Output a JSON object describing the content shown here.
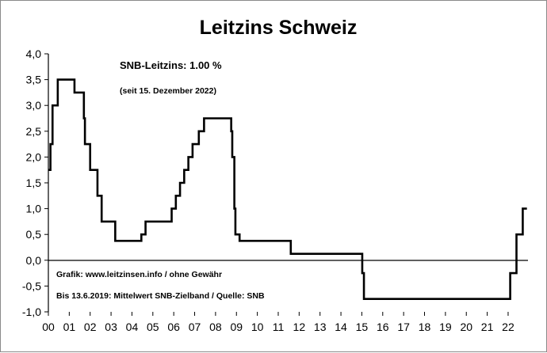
{
  "chart_data": {
    "type": "line",
    "title": "Leitzins Schweiz",
    "xlabel": "",
    "ylabel": "",
    "xlim": [
      2000.0,
      2022.95
    ],
    "ylim": [
      -1.0,
      4.0
    ],
    "y_ticks": [
      "4,0",
      "3,5",
      "3,0",
      "2,5",
      "2,0",
      "1,5",
      "1,0",
      "0,5",
      "0,0",
      "-0,5",
      "-1,0"
    ],
    "x_ticks": [
      "00",
      "01",
      "02",
      "03",
      "04",
      "05",
      "06",
      "07",
      "08",
      "09",
      "10",
      "11",
      "12",
      "13",
      "14",
      "15",
      "16",
      "17",
      "18",
      "19",
      "20",
      "21",
      "22"
    ],
    "grid": false,
    "legend": "none",
    "line_color": "#000000",
    "step": true,
    "series": [
      {
        "x": [
          2000.0,
          2000.1,
          2000.2,
          2000.45,
          2001.25,
          2001.7,
          2001.75,
          2002.0,
          2002.35,
          2002.55,
          2003.2,
          2004.45,
          2004.65,
          2005.9,
          2006.1,
          2006.3,
          2006.5,
          2006.7,
          2006.9,
          2007.2,
          2007.45,
          2007.65,
          2008.75,
          2008.8,
          2008.9,
          2008.95,
          2009.15,
          2011.6,
          2015.02,
          2015.1,
          2022.1,
          2022.4,
          2022.7,
          2022.9
        ],
        "y": [
          1.75,
          2.25,
          3.0,
          3.5,
          3.25,
          2.75,
          2.25,
          1.75,
          1.25,
          0.75,
          0.375,
          0.5,
          0.75,
          1.0,
          1.25,
          1.5,
          1.75,
          2.0,
          2.25,
          2.5,
          2.75,
          2.75,
          2.5,
          2.0,
          1.0,
          0.5,
          0.375,
          0.125,
          -0.25,
          -0.75,
          -0.25,
          0.5,
          1.0,
          1.0
        ]
      }
    ],
    "annotations": {
      "rate_label": "SNB-Leitzins: 1.00 %",
      "since_label": "(seit 15. Dezember 2022)",
      "source_label": "Grafik: www.leitzinsen.info / ohne Gewähr",
      "note_label": "Bis 13.6.2019: Mittelwert SNB-Zielband / Quelle: SNB"
    }
  }
}
